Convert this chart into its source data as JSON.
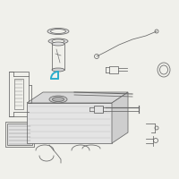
{
  "bg_color": "#f0f0eb",
  "line_color": "#666666",
  "highlight_color": "#2aadcc",
  "lw": 0.55,
  "fig_size": [
    2.0,
    2.0
  ],
  "dpi": 100
}
